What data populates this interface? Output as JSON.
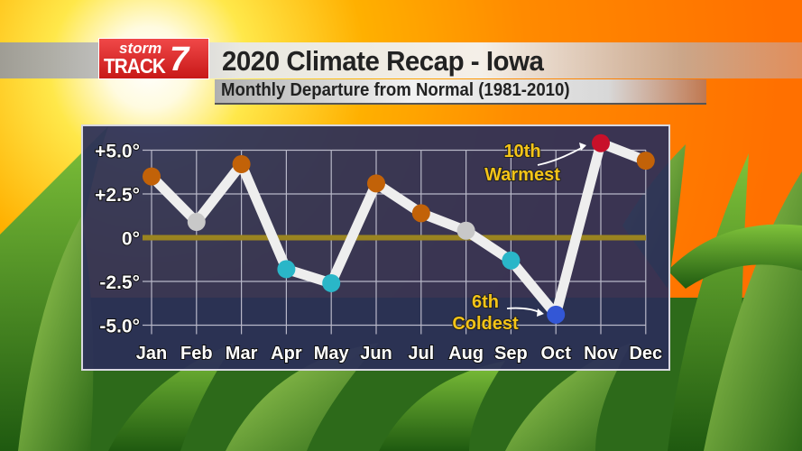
{
  "header": {
    "logo_text_top": "storm",
    "logo_text_bottom": "TRACK",
    "logo_number": "7",
    "title": "2020 Climate Recap - Iowa",
    "subtitle": "Monthly Departure from Normal (1981-2010)"
  },
  "chart_data": {
    "type": "line",
    "title": "2020 Climate Recap - Iowa",
    "subtitle": "Monthly Departure from Normal (1981-2010)",
    "categories": [
      "Jan",
      "Feb",
      "Mar",
      "Apr",
      "May",
      "Jun",
      "Jul",
      "Aug",
      "Sep",
      "Oct",
      "Nov",
      "Dec"
    ],
    "values": [
      3.5,
      0.9,
      4.2,
      -1.8,
      -2.6,
      3.1,
      1.4,
      0.4,
      -1.3,
      -4.4,
      5.4,
      4.4
    ],
    "point_colors": [
      "#c26208",
      "#c8c8c8",
      "#c26208",
      "#2ab6c8",
      "#2ab6c8",
      "#c26208",
      "#c26208",
      "#c8c8c8",
      "#2ab6c8",
      "#3357d6",
      "#c8102a",
      "#c26208"
    ],
    "yticks": [
      "+5.0°",
      "+2.5°",
      "0°",
      "-2.5°",
      "-5.0°"
    ],
    "ytick_values": [
      5,
      2.5,
      0,
      -2.5,
      -5
    ],
    "ylim": [
      -5,
      5
    ],
    "grid": true,
    "zero_line_color": "#9a8420",
    "line_color": "#eeeeee",
    "annotations": [
      {
        "text": [
          "10th",
          "Warmest"
        ],
        "month": "Nov"
      },
      {
        "text": [
          "6th",
          "Coldest"
        ],
        "month": "Oct"
      }
    ]
  }
}
